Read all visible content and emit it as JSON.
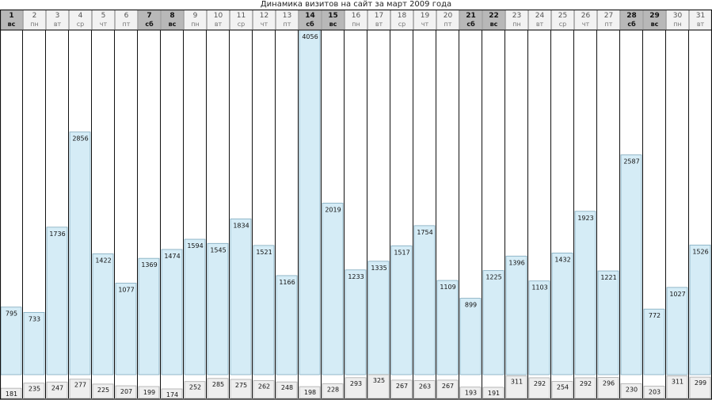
{
  "chart_data": {
    "type": "bar",
    "title": "Динамика визитов на сайт за март 2009 года",
    "categories": [
      "1",
      "2",
      "3",
      "4",
      "5",
      "6",
      "7",
      "8",
      "9",
      "10",
      "11",
      "12",
      "13",
      "14",
      "15",
      "16",
      "17",
      "18",
      "19",
      "20",
      "21",
      "22",
      "23",
      "24",
      "25",
      "26",
      "27",
      "28",
      "29",
      "30",
      "31"
    ],
    "weekdays": [
      "вс",
      "пн",
      "вт",
      "ср",
      "чт",
      "пт",
      "сб",
      "вс",
      "пн",
      "вт",
      "ср",
      "чт",
      "пт",
      "сб",
      "вс",
      "пн",
      "вт",
      "ср",
      "чт",
      "пт",
      "сб",
      "вс",
      "пн",
      "вт",
      "ср",
      "чт",
      "пт",
      "сб",
      "вс",
      "пн",
      "вт"
    ],
    "weekend": [
      true,
      false,
      false,
      false,
      false,
      false,
      true,
      true,
      false,
      false,
      false,
      false,
      false,
      true,
      true,
      false,
      false,
      false,
      false,
      false,
      true,
      true,
      false,
      false,
      false,
      false,
      false,
      true,
      true,
      false,
      false
    ],
    "series": [
      {
        "values": [
          795,
          733,
          1736,
          2856,
          1422,
          1077,
          1369,
          1474,
          1594,
          1545,
          1834,
          1521,
          1166,
          4056,
          2019,
          1233,
          1335,
          1517,
          1754,
          1109,
          899,
          1225,
          1396,
          1103,
          1432,
          1923,
          1221,
          2587,
          772,
          1027,
          1526
        ]
      },
      {
        "values": [
          181,
          235,
          247,
          277,
          225,
          207,
          199,
          174,
          252,
          285,
          275,
          262,
          248,
          198,
          228,
          293,
          325,
          267,
          263,
          267,
          193,
          191,
          311,
          292,
          254,
          292,
          296,
          230,
          203,
          311,
          299
        ]
      }
    ],
    "ylim": [
      0,
      4056
    ],
    "colors": {
      "bar_fill": "#d5ecf6",
      "bar_stroke": "#7fa9bd",
      "sub_fill": "#eeeeee",
      "sub_stroke": "#aaaaaa",
      "header_bg": "#f2f2f2",
      "header_weekend_bg": "#b8b8b8",
      "frame": "#111111"
    }
  }
}
